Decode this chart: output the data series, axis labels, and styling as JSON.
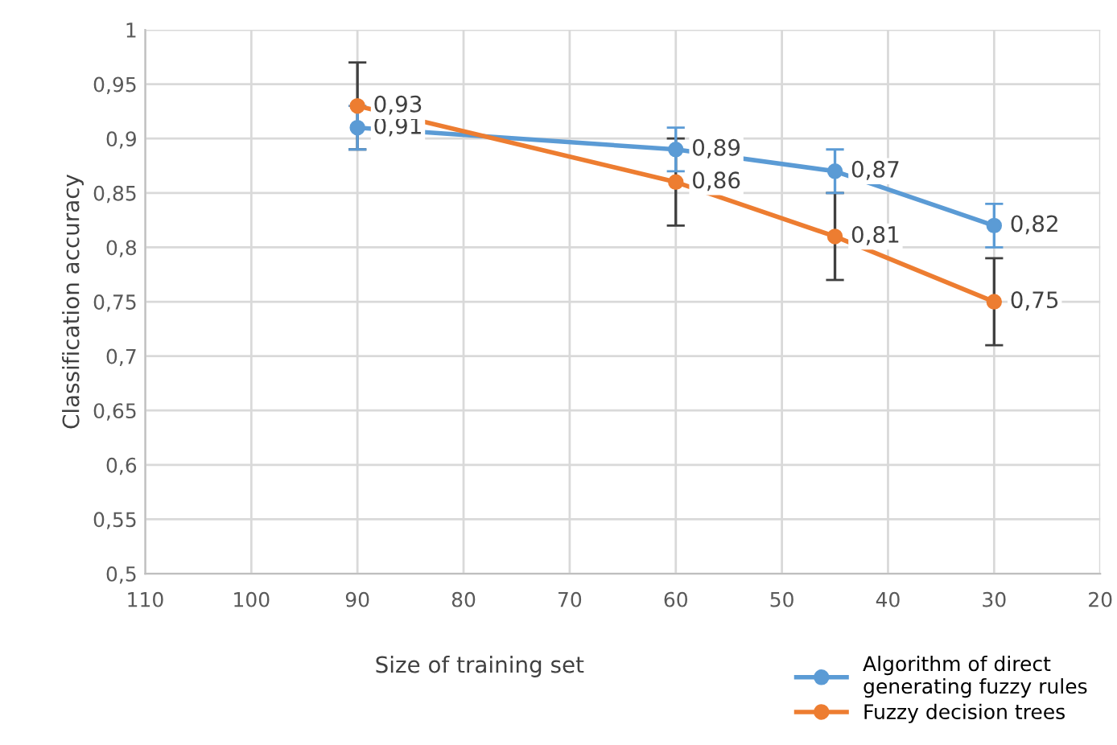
{
  "chart_data": {
    "type": "line",
    "xlabel": "Size of training set",
    "ylabel": "Classification accuracy",
    "x": [
      90,
      60,
      45,
      30
    ],
    "series": [
      {
        "name": "Algorithm of direct generating fuzzy rules",
        "color": "#5b9bd5",
        "values": [
          0.91,
          0.89,
          0.87,
          0.82
        ],
        "errors": [
          0.02,
          0.02,
          0.02,
          0.02
        ],
        "value_labels": [
          "0,91",
          "0,89",
          "0,87",
          "0,82"
        ]
      },
      {
        "name": "Fuzzy decision trees",
        "color": "#ed7d31",
        "values": [
          0.93,
          0.86,
          0.81,
          0.75
        ],
        "errors": [
          0.04,
          0.04,
          0.04,
          0.04
        ],
        "value_labels": [
          "0,93",
          "0,86",
          "0,81",
          "0,75"
        ]
      }
    ],
    "xlim": [
      110,
      20
    ],
    "xticks": [
      110,
      100,
      90,
      80,
      70,
      60,
      50,
      40,
      30,
      20
    ],
    "ylim": [
      0.5,
      1
    ],
    "yticks": [
      {
        "value": 0.5,
        "label": "0,5"
      },
      {
        "value": 0.55,
        "label": "0,55"
      },
      {
        "value": 0.6,
        "label": "0,6"
      },
      {
        "value": 0.65,
        "label": "0,65"
      },
      {
        "value": 0.7,
        "label": "0,7"
      },
      {
        "value": 0.75,
        "label": "0,75"
      },
      {
        "value": 0.8,
        "label": "0,8"
      },
      {
        "value": 0.85,
        "label": "0,85"
      },
      {
        "value": 0.9,
        "label": "0,9"
      },
      {
        "value": 0.95,
        "label": "0,95"
      },
      {
        "value": 1,
        "label": "1"
      }
    ],
    "grid": true,
    "legend": "bottom right",
    "marker": "circle",
    "line_style": "solid"
  }
}
